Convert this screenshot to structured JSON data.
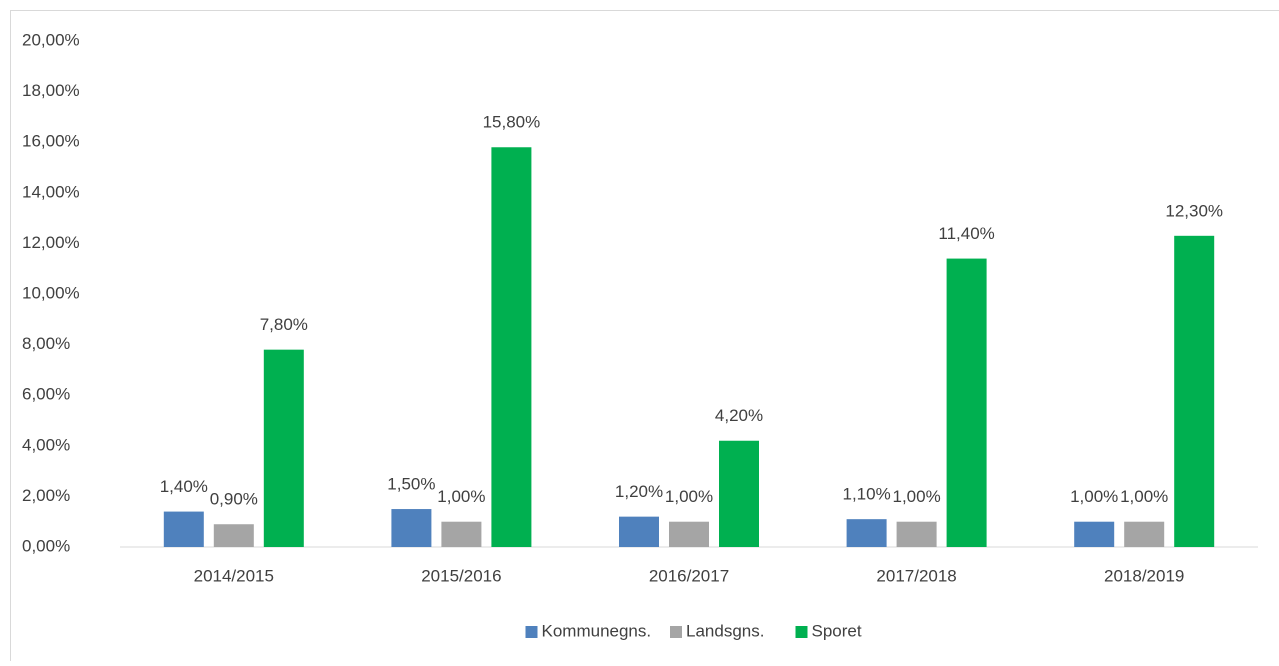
{
  "chart_data": {
    "type": "bar",
    "categories": [
      "2014/2015",
      "2015/2016",
      "2016/2017",
      "2017/2018",
      "2018/2019"
    ],
    "series": [
      {
        "name": "Kommunegns.",
        "color": "#4f81bd",
        "values": [
          1.4,
          1.5,
          1.2,
          1.1,
          1.0
        ],
        "value_labels": [
          "1,40%",
          "1,50%",
          "1,20%",
          "1,10%",
          "1,00%"
        ]
      },
      {
        "name": "Landsgns.",
        "color": "#a5a5a5",
        "values": [
          0.9,
          1.0,
          1.0,
          1.0,
          1.0
        ],
        "value_labels": [
          "0,90%",
          "1,00%",
          "1,00%",
          "1,00%",
          "1,00%"
        ]
      },
      {
        "name": "Sporet",
        "color": "#00b050",
        "values": [
          7.8,
          15.8,
          4.2,
          11.4,
          12.3
        ],
        "value_labels": [
          "7,80%",
          "15,80%",
          "4,20%",
          "11,40%",
          "12,30%"
        ]
      }
    ],
    "ylim": [
      0,
      20
    ],
    "yticks": [
      {
        "value": 0,
        "label": "0,00%"
      },
      {
        "value": 2,
        "label": "2,00%"
      },
      {
        "value": 4,
        "label": "4,00%"
      },
      {
        "value": 6,
        "label": "6,00%"
      },
      {
        "value": 8,
        "label": "8,00%"
      },
      {
        "value": 10,
        "label": "10,00%"
      },
      {
        "value": 12,
        "label": "12,00%"
      },
      {
        "value": 14,
        "label": "14,00%"
      },
      {
        "value": 16,
        "label": "16,00%"
      },
      {
        "value": 18,
        "label": "18,00%"
      },
      {
        "value": 20,
        "label": "20,00%"
      }
    ],
    "grid": false,
    "legend": "bottom"
  }
}
